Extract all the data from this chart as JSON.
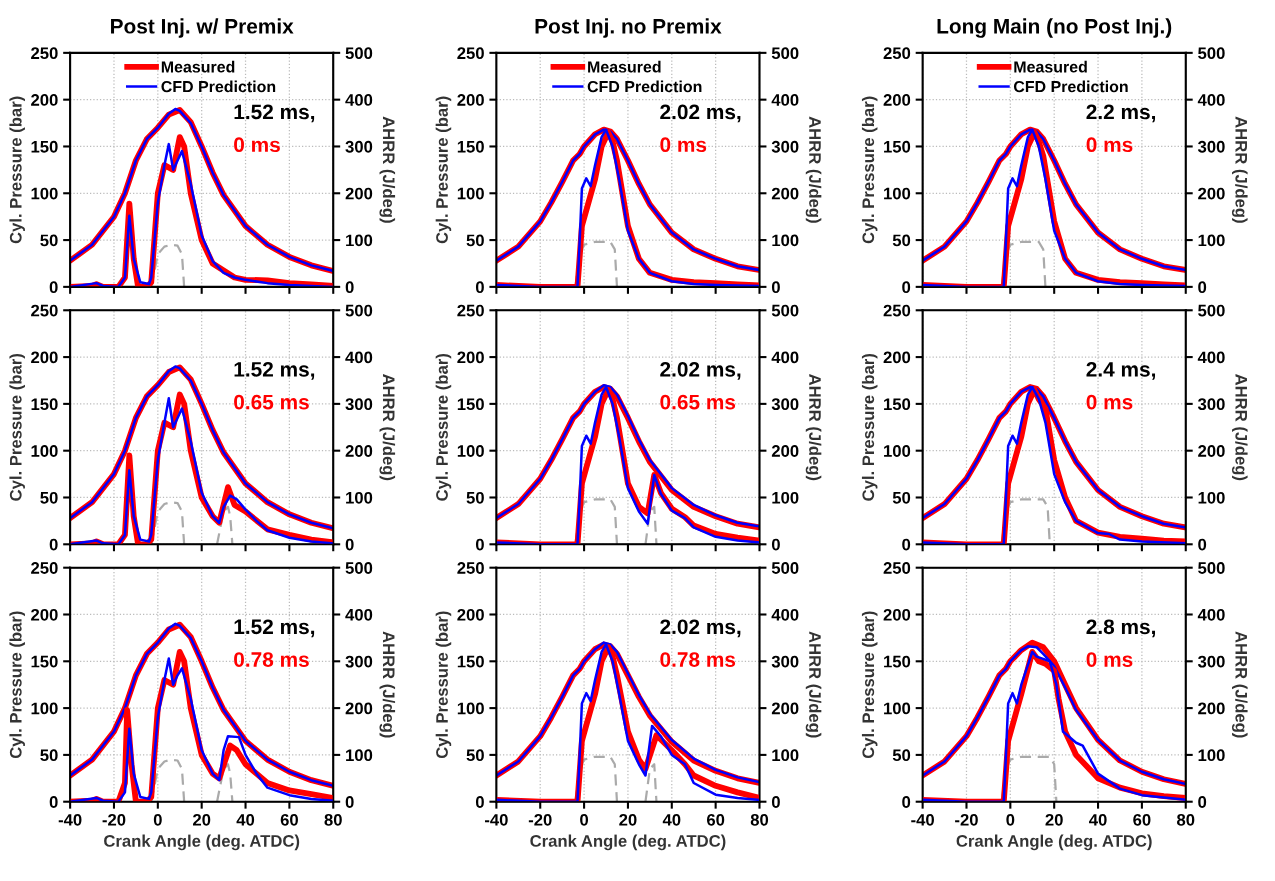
{
  "chart_data": [
    {
      "type": "line",
      "title": "Post Inj. w/ Premix",
      "ylabel": "Cyl. Pressure (bar)",
      "y2label": "AHRR (J/deg)",
      "xlim": [
        -40,
        80
      ],
      "xticks": [
        -40,
        -20,
        0,
        20,
        40,
        60,
        80
      ],
      "ylim": [
        0,
        250
      ],
      "yticks": [
        0,
        50,
        100,
        150,
        200,
        250
      ],
      "y2lim": [
        0,
        500
      ],
      "y2ticks": [
        0,
        100,
        200,
        300,
        400,
        500
      ],
      "grid": true,
      "legend": "top",
      "tick_labels": "y",
      "annotations": [
        "1.52 ms,",
        "0 ms"
      ],
      "series": [
        {
          "name": "Measured",
          "color": "#ff0000",
          "x": [
            -40,
            -30,
            -20,
            -15,
            -10,
            -5,
            0,
            5,
            10,
            15,
            20,
            25,
            30,
            40,
            50,
            60,
            70,
            80
          ],
          "values": [
            28,
            45,
            75,
            100,
            135,
            158,
            170,
            184,
            189,
            176,
            150,
            122,
            98,
            65,
            45,
            32,
            23,
            17
          ]
        },
        {
          "name": "CFD Prediction",
          "color": "#0000ff",
          "x": [
            -40,
            -30,
            -20,
            -15,
            -10,
            -5,
            0,
            5,
            8,
            10,
            15,
            20,
            25,
            30,
            40,
            50,
            60,
            70,
            80
          ],
          "values": [
            28,
            45,
            75,
            100,
            135,
            158,
            170,
            185,
            190,
            188,
            175,
            150,
            122,
            98,
            65,
            45,
            32,
            23,
            17
          ]
        },
        {
          "color": "#ff0000",
          "axis": "y2",
          "x": [
            -40,
            -30,
            -28,
            -25,
            -18,
            -15,
            -13,
            -11,
            -9,
            -5,
            -3,
            0,
            3,
            7,
            10,
            12,
            15,
            20,
            25,
            30,
            35,
            40,
            50,
            60,
            70,
            80
          ],
          "values": [
            0,
            2,
            6,
            0,
            0,
            20,
            178,
            60,
            0,
            0,
            10,
            200,
            260,
            250,
            320,
            300,
            200,
            100,
            50,
            35,
            20,
            15,
            14,
            8,
            5,
            2
          ]
        },
        {
          "color": "#0000ff",
          "axis": "y2",
          "x": [
            -40,
            -28,
            -25,
            -18,
            -15,
            -13,
            -11,
            -8,
            -4,
            -3,
            0,
            3,
            5,
            7,
            9,
            11,
            15,
            20,
            25,
            30,
            35,
            40,
            50,
            60,
            70,
            80
          ],
          "values": [
            0,
            8,
            2,
            0,
            20,
            152,
            60,
            10,
            6,
            20,
            180,
            260,
            305,
            250,
            270,
            290,
            220,
            110,
            55,
            30,
            20,
            15,
            8,
            4,
            2,
            0
          ]
        },
        {
          "color": "#aaaaaa",
          "line_style": "dashed",
          "x": [
            -3,
            0,
            3,
            6,
            9,
            11,
            12
          ],
          "values": [
            0,
            35,
            43,
            45,
            44,
            35,
            0
          ]
        }
      ]
    },
    {
      "type": "line",
      "title": "Post Inj. no Premix",
      "ylabel": "Cyl. Pressure (bar)",
      "y2label": "AHRR (J/deg)",
      "xlim": [
        -40,
        80
      ],
      "xticks": [
        -40,
        -20,
        0,
        20,
        40,
        60,
        80
      ],
      "ylim": [
        0,
        250
      ],
      "yticks": [
        0,
        50,
        100,
        150,
        200,
        250
      ],
      "y2lim": [
        0,
        500
      ],
      "y2ticks": [
        0,
        100,
        200,
        300,
        400,
        500
      ],
      "grid": true,
      "legend": "top",
      "tick_labels": "y",
      "annotations": [
        "2.02 ms,",
        "0 ms"
      ],
      "series": [
        {
          "name": "Measured",
          "color": "#ff0000",
          "x": [
            -40,
            -30,
            -20,
            -15,
            -10,
            -5,
            -2,
            0,
            5,
            9,
            12,
            15,
            20,
            25,
            30,
            40,
            50,
            60,
            70,
            80
          ],
          "values": [
            28,
            43,
            70,
            90,
            112,
            135,
            142,
            150,
            163,
            168,
            166,
            158,
            135,
            110,
            88,
            58,
            40,
            30,
            22,
            18
          ]
        },
        {
          "name": "CFD Prediction",
          "color": "#0000ff",
          "x": [
            -40,
            -30,
            -20,
            -15,
            -10,
            -5,
            -2,
            0,
            5,
            9,
            12,
            15,
            20,
            25,
            30,
            40,
            50,
            60,
            70,
            80
          ],
          "values": [
            28,
            43,
            70,
            90,
            112,
            135,
            142,
            150,
            163,
            168,
            166,
            158,
            135,
            110,
            88,
            58,
            40,
            30,
            22,
            18
          ]
        },
        {
          "color": "#ff0000",
          "axis": "y2",
          "x": [
            -40,
            -20,
            -3,
            -1,
            2,
            5,
            8,
            11,
            13,
            15,
            20,
            25,
            30,
            40,
            50,
            60,
            70,
            80
          ],
          "values": [
            4,
            0,
            0,
            130,
            180,
            230,
            300,
            330,
            310,
            270,
            130,
            60,
            30,
            15,
            10,
            8,
            5,
            3
          ]
        },
        {
          "color": "#0000ff",
          "axis": "y2",
          "x": [
            -40,
            -20,
            -3,
            -2,
            -1,
            1,
            3,
            5,
            8,
            10,
            13,
            16,
            20,
            25,
            30,
            40,
            50,
            60,
            80
          ],
          "values": [
            4,
            0,
            0,
            100,
            210,
            232,
            215,
            260,
            320,
            336,
            300,
            230,
            120,
            60,
            30,
            12,
            6,
            4,
            2
          ]
        },
        {
          "color": "#aaaaaa",
          "line_style": "dashed",
          "x": [
            -4,
            -2,
            0,
            5,
            12,
            14,
            15
          ],
          "values": [
            0,
            35,
            45,
            48,
            48,
            40,
            0
          ]
        }
      ]
    },
    {
      "type": "line",
      "title": "Long Main (no Post Inj.)",
      "ylabel": "Cyl. Pressure (bar)",
      "y2label": "AHRR (J/deg)",
      "xlim": [
        -40,
        80
      ],
      "xticks": [
        -40,
        -20,
        0,
        20,
        40,
        60,
        80
      ],
      "ylim": [
        0,
        250
      ],
      "yticks": [
        0,
        50,
        100,
        150,
        200,
        250
      ],
      "y2lim": [
        0,
        500
      ],
      "y2ticks": [
        0,
        100,
        200,
        300,
        400,
        500
      ],
      "grid": true,
      "legend": "top",
      "tick_labels": "y",
      "annotations": [
        "2.2 ms,",
        "0 ms"
      ],
      "series": [
        {
          "name": "Measured",
          "color": "#ff0000",
          "x": [
            -40,
            -30,
            -20,
            -15,
            -10,
            -5,
            -2,
            0,
            5,
            9,
            12,
            15,
            20,
            25,
            30,
            40,
            50,
            60,
            70,
            80
          ],
          "values": [
            28,
            43,
            70,
            90,
            112,
            135,
            142,
            150,
            163,
            168,
            166,
            158,
            135,
            110,
            88,
            58,
            40,
            30,
            22,
            18
          ]
        },
        {
          "name": "CFD Prediction",
          "color": "#0000ff",
          "x": [
            -40,
            -30,
            -20,
            -15,
            -10,
            -5,
            -2,
            0,
            5,
            9,
            12,
            15,
            20,
            25,
            30,
            40,
            50,
            60,
            70,
            80
          ],
          "values": [
            28,
            43,
            70,
            90,
            112,
            135,
            142,
            150,
            163,
            168,
            166,
            158,
            135,
            110,
            88,
            58,
            40,
            30,
            22,
            18
          ]
        },
        {
          "color": "#ff0000",
          "axis": "y2",
          "x": [
            -40,
            -20,
            -3,
            -1,
            2,
            5,
            8,
            11,
            13,
            15,
            20,
            25,
            30,
            40,
            50,
            60,
            70,
            80
          ],
          "values": [
            4,
            0,
            0,
            130,
            180,
            230,
            300,
            330,
            310,
            280,
            140,
            60,
            30,
            15,
            10,
            8,
            5,
            3
          ]
        },
        {
          "color": "#0000ff",
          "axis": "y2",
          "x": [
            -40,
            -20,
            -3,
            -2,
            -1,
            1,
            3,
            5,
            8,
            10,
            13,
            16,
            20,
            25,
            30,
            40,
            50,
            60,
            80
          ],
          "values": [
            4,
            0,
            0,
            100,
            210,
            232,
            215,
            260,
            320,
            336,
            300,
            230,
            120,
            60,
            30,
            12,
            6,
            4,
            2
          ]
        },
        {
          "color": "#aaaaaa",
          "line_style": "dashed",
          "x": [
            -4,
            -2,
            0,
            5,
            13,
            15,
            16
          ],
          "values": [
            0,
            35,
            45,
            48,
            48,
            40,
            0
          ]
        }
      ]
    },
    {
      "type": "line",
      "ylabel": "Cyl. Pressure (bar)",
      "y2label": "AHRR (J/deg)",
      "xlim": [
        -40,
        80
      ],
      "xticks": [
        -40,
        -20,
        0,
        20,
        40,
        60,
        80
      ],
      "ylim": [
        0,
        250
      ],
      "yticks": [
        0,
        50,
        100,
        150,
        200,
        250
      ],
      "y2lim": [
        0,
        500
      ],
      "y2ticks": [
        0,
        100,
        200,
        300,
        400,
        500
      ],
      "grid": true,
      "tick_labels": "y",
      "annotations": [
        "1.52 ms,",
        "0.65 ms"
      ],
      "series": [
        {
          "color": "#ff0000",
          "x": [
            -40,
            -30,
            -20,
            -15,
            -10,
            -5,
            0,
            5,
            10,
            15,
            20,
            25,
            30,
            40,
            50,
            60,
            70,
            80
          ],
          "values": [
            28,
            45,
            75,
            100,
            135,
            158,
            170,
            184,
            189,
            176,
            150,
            122,
            98,
            65,
            45,
            32,
            23,
            17
          ]
        },
        {
          "color": "#0000ff",
          "x": [
            -40,
            -30,
            -20,
            -15,
            -10,
            -5,
            0,
            5,
            8,
            10,
            15,
            20,
            25,
            30,
            40,
            50,
            60,
            70,
            80
          ],
          "values": [
            28,
            45,
            75,
            100,
            135,
            158,
            170,
            185,
            190,
            188,
            175,
            150,
            122,
            98,
            65,
            45,
            32,
            23,
            17
          ]
        },
        {
          "color": "#ff0000",
          "axis": "y2",
          "x": [
            -40,
            -30,
            -28,
            -25,
            -18,
            -15,
            -13,
            -11,
            -9,
            -5,
            -3,
            0,
            3,
            7,
            10,
            12,
            15,
            20,
            25,
            28,
            32,
            35,
            40,
            50,
            60,
            70,
            80
          ],
          "values": [
            0,
            2,
            6,
            0,
            0,
            20,
            190,
            60,
            0,
            0,
            10,
            200,
            260,
            250,
            320,
            300,
            200,
            100,
            60,
            46,
            122,
            84,
            70,
            32,
            20,
            10,
            4
          ]
        },
        {
          "color": "#0000ff",
          "axis": "y2",
          "x": [
            -40,
            -28,
            -25,
            -18,
            -15,
            -13,
            -11,
            -8,
            -4,
            -3,
            0,
            3,
            5,
            7,
            9,
            11,
            15,
            20,
            25,
            28,
            30,
            33,
            36,
            40,
            45,
            50,
            60,
            70,
            80
          ],
          "values": [
            0,
            8,
            2,
            0,
            20,
            158,
            60,
            10,
            6,
            20,
            180,
            260,
            312,
            250,
            270,
            290,
            220,
            110,
            60,
            46,
            80,
            104,
            96,
            74,
            50,
            30,
            14,
            6,
            2
          ]
        },
        {
          "color": "#aaaaaa",
          "line_style": "dashed",
          "x": [
            -3,
            0,
            3,
            6,
            9,
            11,
            12,
            13,
            27,
            30,
            32,
            33,
            34
          ],
          "values": [
            0,
            35,
            43,
            45,
            44,
            35,
            0,
            null,
            0,
            35,
            40,
            30,
            0
          ]
        }
      ]
    },
    {
      "type": "line",
      "ylabel": "Cyl. Pressure (bar)",
      "y2label": "AHRR (J/deg)",
      "xlim": [
        -40,
        80
      ],
      "xticks": [
        -40,
        -20,
        0,
        20,
        40,
        60,
        80
      ],
      "ylim": [
        0,
        250
      ],
      "yticks": [
        0,
        50,
        100,
        150,
        200,
        250
      ],
      "y2lim": [
        0,
        500
      ],
      "y2ticks": [
        0,
        100,
        200,
        300,
        400,
        500
      ],
      "grid": true,
      "tick_labels": "y",
      "annotations": [
        "2.02 ms,",
        "0.65 ms"
      ],
      "series": [
        {
          "color": "#ff0000",
          "x": [
            -40,
            -30,
            -20,
            -15,
            -10,
            -5,
            -2,
            0,
            5,
            9,
            12,
            15,
            20,
            25,
            30,
            40,
            50,
            60,
            70,
            80
          ],
          "values": [
            28,
            43,
            70,
            90,
            112,
            135,
            142,
            150,
            163,
            168,
            166,
            158,
            135,
            110,
            88,
            58,
            40,
            30,
            22,
            18
          ]
        },
        {
          "color": "#0000ff",
          "x": [
            -40,
            -30,
            -20,
            -15,
            -10,
            -5,
            -2,
            0,
            5,
            9,
            12,
            15,
            20,
            25,
            30,
            40,
            50,
            60,
            70,
            80
          ],
          "values": [
            28,
            43,
            70,
            90,
            112,
            135,
            142,
            150,
            163,
            170,
            168,
            160,
            137,
            112,
            90,
            60,
            42,
            31,
            23,
            19
          ]
        },
        {
          "color": "#ff0000",
          "axis": "y2",
          "x": [
            -40,
            -20,
            -3,
            -1,
            2,
            5,
            8,
            11,
            13,
            15,
            20,
            25,
            29,
            32,
            35,
            40,
            46,
            50,
            60,
            70,
            80
          ],
          "values": [
            4,
            0,
            0,
            130,
            180,
            230,
            300,
            330,
            310,
            270,
            130,
            80,
            66,
            148,
            110,
            76,
            58,
            40,
            22,
            14,
            8
          ]
        },
        {
          "color": "#0000ff",
          "axis": "y2",
          "x": [
            -40,
            -20,
            -3,
            -2,
            -1,
            1,
            3,
            5,
            8,
            10,
            13,
            16,
            20,
            25,
            29,
            32,
            35,
            40,
            46,
            50,
            60,
            70,
            80
          ],
          "values": [
            4,
            0,
            0,
            100,
            210,
            232,
            215,
            260,
            320,
            336,
            300,
            230,
            120,
            70,
            44,
            148,
            108,
            72,
            56,
            36,
            16,
            8,
            4
          ]
        },
        {
          "color": "#aaaaaa",
          "line_style": "dashed",
          "x": [
            -4,
            -2,
            0,
            5,
            12,
            14,
            15,
            20,
            28,
            30,
            32,
            33
          ],
          "values": [
            0,
            35,
            45,
            48,
            48,
            40,
            0,
            null,
            0,
            35,
            40,
            0
          ]
        }
      ]
    },
    {
      "type": "line",
      "ylabel": "Cyl. Pressure (bar)",
      "y2label": "AHRR (J/deg)",
      "xlim": [
        -40,
        80
      ],
      "xticks": [
        -40,
        -20,
        0,
        20,
        40,
        60,
        80
      ],
      "ylim": [
        0,
        250
      ],
      "yticks": [
        0,
        50,
        100,
        150,
        200,
        250
      ],
      "y2lim": [
        0,
        500
      ],
      "y2ticks": [
        0,
        100,
        200,
        300,
        400,
        500
      ],
      "grid": true,
      "tick_labels": "y",
      "annotations": [
        "2.4 ms,",
        "0 ms"
      ],
      "series": [
        {
          "color": "#ff0000",
          "x": [
            -40,
            -30,
            -20,
            -15,
            -10,
            -5,
            -2,
            0,
            5,
            9,
            12,
            15,
            20,
            25,
            30,
            40,
            50,
            60,
            70,
            80
          ],
          "values": [
            28,
            43,
            70,
            90,
            112,
            135,
            142,
            150,
            163,
            168,
            166,
            158,
            135,
            110,
            88,
            58,
            40,
            30,
            22,
            18
          ]
        },
        {
          "color": "#0000ff",
          "x": [
            -40,
            -30,
            -20,
            -15,
            -10,
            -5,
            -2,
            0,
            5,
            9,
            12,
            15,
            20,
            25,
            30,
            40,
            50,
            60,
            70,
            80
          ],
          "values": [
            28,
            43,
            70,
            90,
            112,
            135,
            142,
            150,
            163,
            168,
            166,
            158,
            135,
            110,
            88,
            58,
            40,
            30,
            22,
            18
          ]
        },
        {
          "color": "#ff0000",
          "axis": "y2",
          "x": [
            -40,
            -20,
            -3,
            -1,
            2,
            5,
            8,
            11,
            13,
            16,
            20,
            25,
            30,
            40,
            50,
            60,
            70,
            80
          ],
          "values": [
            4,
            0,
            0,
            130,
            180,
            230,
            300,
            330,
            310,
            290,
            180,
            100,
            50,
            25,
            16,
            12,
            8,
            6
          ]
        },
        {
          "color": "#0000ff",
          "axis": "y2",
          "x": [
            -40,
            -20,
            -3,
            -2,
            -1,
            1,
            3,
            5,
            8,
            10,
            13,
            16,
            20,
            25,
            30,
            40,
            45,
            50,
            60,
            80
          ],
          "values": [
            4,
            0,
            0,
            100,
            210,
            232,
            215,
            260,
            320,
            336,
            310,
            260,
            150,
            90,
            50,
            24,
            22,
            10,
            6,
            2
          ]
        },
        {
          "color": "#aaaaaa",
          "line_style": "dashed",
          "x": [
            -4,
            -2,
            0,
            5,
            15,
            17,
            18
          ],
          "values": [
            0,
            35,
            45,
            48,
            48,
            40,
            0
          ]
        }
      ]
    },
    {
      "type": "line",
      "ylabel": "Cyl. Pressure (bar)",
      "y2label": "AHRR (J/deg)",
      "xlabel": "Crank Angle (deg. ATDC)",
      "xlim": [
        -40,
        80
      ],
      "xticks": [
        -40,
        -20,
        0,
        20,
        40,
        60,
        80
      ],
      "ylim": [
        0,
        250
      ],
      "yticks": [
        0,
        50,
        100,
        150,
        200,
        250
      ],
      "y2lim": [
        0,
        500
      ],
      "y2ticks": [
        0,
        100,
        200,
        300,
        400,
        500
      ],
      "grid": true,
      "annotations": [
        "1.52 ms,",
        "0.78 ms"
      ],
      "series": [
        {
          "color": "#ff0000",
          "x": [
            -40,
            -30,
            -20,
            -15,
            -10,
            -5,
            0,
            5,
            10,
            15,
            20,
            25,
            30,
            40,
            50,
            60,
            70,
            80
          ],
          "values": [
            28,
            45,
            75,
            100,
            135,
            158,
            170,
            184,
            189,
            176,
            150,
            122,
            98,
            65,
            45,
            32,
            23,
            17
          ]
        },
        {
          "color": "#0000ff",
          "x": [
            -40,
            -30,
            -20,
            -15,
            -10,
            -5,
            0,
            5,
            8,
            10,
            15,
            20,
            25,
            30,
            40,
            50,
            60,
            70,
            80
          ],
          "values": [
            28,
            45,
            75,
            100,
            135,
            158,
            170,
            185,
            190,
            188,
            175,
            150,
            122,
            98,
            65,
            45,
            32,
            23,
            17
          ]
        },
        {
          "color": "#ff0000",
          "axis": "y2",
          "x": [
            -40,
            -30,
            -28,
            -25,
            -18,
            -15,
            -14,
            -12,
            -10,
            -5,
            -3,
            0,
            3,
            7,
            10,
            12,
            15,
            20,
            25,
            28,
            33,
            36,
            40,
            50,
            60,
            70,
            80
          ],
          "values": [
            0,
            2,
            6,
            0,
            0,
            40,
            196,
            80,
            0,
            0,
            10,
            200,
            260,
            250,
            320,
            300,
            200,
            100,
            60,
            50,
            120,
            110,
            80,
            40,
            24,
            16,
            8
          ]
        },
        {
          "color": "#0000ff",
          "axis": "y2",
          "x": [
            -40,
            -28,
            -25,
            -18,
            -15,
            -13,
            -11,
            -8,
            -4,
            -3,
            0,
            3,
            5,
            7,
            9,
            11,
            15,
            20,
            25,
            28,
            30,
            32,
            37,
            40,
            45,
            50,
            60,
            70,
            80
          ],
          "values": [
            0,
            8,
            2,
            0,
            20,
            156,
            60,
            10,
            6,
            20,
            180,
            260,
            306,
            250,
            270,
            285,
            220,
            110,
            60,
            46,
            110,
            140,
            138,
            100,
            60,
            30,
            14,
            6,
            2
          ]
        },
        {
          "color": "#aaaaaa",
          "line_style": "dashed",
          "x": [
            -3,
            0,
            3,
            6,
            9,
            11,
            12,
            13,
            27,
            30,
            32,
            33,
            34
          ],
          "values": [
            0,
            35,
            43,
            45,
            44,
            35,
            0,
            null,
            0,
            35,
            40,
            30,
            0
          ]
        }
      ]
    },
    {
      "type": "line",
      "ylabel": "Cyl. Pressure (bar)",
      "y2label": "AHRR (J/deg)",
      "xlabel": "Crank Angle (deg. ATDC)",
      "xlim": [
        -40,
        80
      ],
      "xticks": [
        -40,
        -20,
        0,
        20,
        40,
        60,
        80
      ],
      "ylim": [
        0,
        250
      ],
      "yticks": [
        0,
        50,
        100,
        150,
        200,
        250
      ],
      "y2lim": [
        0,
        500
      ],
      "y2ticks": [
        0,
        100,
        200,
        300,
        400,
        500
      ],
      "grid": true,
      "annotations": [
        "2.02 ms,",
        "0.78 ms"
      ],
      "series": [
        {
          "color": "#ff0000",
          "x": [
            -40,
            -30,
            -20,
            -15,
            -10,
            -5,
            -2,
            0,
            5,
            9,
            12,
            15,
            20,
            25,
            30,
            40,
            50,
            60,
            70,
            80
          ],
          "values": [
            28,
            43,
            70,
            90,
            112,
            135,
            142,
            150,
            163,
            168,
            166,
            158,
            135,
            112,
            92,
            64,
            44,
            33,
            25,
            20
          ]
        },
        {
          "color": "#0000ff",
          "x": [
            -40,
            -30,
            -20,
            -15,
            -10,
            -5,
            -2,
            0,
            5,
            9,
            12,
            15,
            20,
            25,
            30,
            40,
            50,
            60,
            70,
            80
          ],
          "values": [
            28,
            43,
            70,
            90,
            112,
            135,
            142,
            150,
            163,
            170,
            168,
            160,
            137,
            114,
            94,
            66,
            46,
            34,
            26,
            21
          ]
        },
        {
          "color": "#ff0000",
          "axis": "y2",
          "x": [
            -40,
            -20,
            -3,
            -1,
            2,
            5,
            8,
            11,
            13,
            15,
            20,
            25,
            28,
            33,
            40,
            46,
            50,
            60,
            70,
            80
          ],
          "values": [
            4,
            0,
            0,
            130,
            180,
            230,
            300,
            330,
            310,
            270,
            150,
            90,
            70,
            142,
            110,
            80,
            56,
            34,
            20,
            8
          ]
        },
        {
          "color": "#0000ff",
          "axis": "y2",
          "x": [
            -40,
            -20,
            -3,
            -2,
            -1,
            1,
            3,
            5,
            8,
            10,
            13,
            16,
            20,
            25,
            28,
            31,
            35,
            40,
            46,
            50,
            60,
            70,
            80
          ],
          "values": [
            4,
            0,
            0,
            100,
            210,
            232,
            215,
            260,
            320,
            336,
            300,
            230,
            130,
            80,
            56,
            162,
            140,
            100,
            80,
            40,
            15,
            8,
            4
          ]
        },
        {
          "color": "#aaaaaa",
          "line_style": "dashed",
          "x": [
            -4,
            -2,
            0,
            5,
            12,
            14,
            15,
            20,
            28,
            30,
            32,
            33
          ],
          "values": [
            0,
            35,
            45,
            48,
            48,
            40,
            0,
            null,
            0,
            35,
            40,
            0
          ]
        }
      ]
    },
    {
      "type": "line",
      "ylabel": "Cyl. Pressure (bar)",
      "y2label": "AHRR (J/deg)",
      "xlabel": "Crank Angle (deg. ATDC)",
      "xlim": [
        -40,
        80
      ],
      "xticks": [
        -40,
        -20,
        0,
        20,
        40,
        60,
        80
      ],
      "ylim": [
        0,
        250
      ],
      "yticks": [
        0,
        50,
        100,
        150,
        200,
        250
      ],
      "y2lim": [
        0,
        500
      ],
      "y2ticks": [
        0,
        100,
        200,
        300,
        400,
        500
      ],
      "grid": true,
      "annotations": [
        "2.8 ms,",
        "0 ms"
      ],
      "series": [
        {
          "color": "#ff0000",
          "x": [
            -40,
            -30,
            -20,
            -15,
            -10,
            -5,
            -2,
            0,
            5,
            10,
            15,
            20,
            25,
            30,
            40,
            50,
            60,
            70,
            80
          ],
          "values": [
            28,
            43,
            70,
            90,
            112,
            135,
            142,
            150,
            162,
            170,
            165,
            150,
            125,
            100,
            66,
            44,
            32,
            24,
            19
          ]
        },
        {
          "color": "#0000ff",
          "x": [
            -40,
            -30,
            -20,
            -15,
            -10,
            -5,
            -2,
            0,
            5,
            8,
            12,
            15,
            20,
            25,
            30,
            40,
            50,
            60,
            70,
            80
          ],
          "values": [
            28,
            43,
            70,
            90,
            112,
            135,
            142,
            150,
            162,
            166,
            165,
            158,
            145,
            122,
            98,
            66,
            44,
            32,
            24,
            19
          ]
        },
        {
          "color": "#ff0000",
          "axis": "y2",
          "x": [
            -40,
            -20,
            -3,
            -1,
            2,
            5,
            10,
            13,
            16,
            20,
            22,
            25,
            30,
            40,
            50,
            60,
            70,
            80
          ],
          "values": [
            4,
            0,
            0,
            130,
            180,
            230,
            320,
            300,
            295,
            280,
            220,
            150,
            100,
            50,
            30,
            18,
            12,
            8
          ]
        },
        {
          "color": "#0000ff",
          "axis": "y2",
          "x": [
            -40,
            -20,
            -3,
            -2,
            -1,
            1,
            3,
            5,
            10,
            12,
            18,
            21,
            24,
            30,
            33,
            40,
            50,
            60,
            80
          ],
          "values": [
            4,
            0,
            0,
            100,
            210,
            232,
            210,
            250,
            320,
            310,
            300,
            250,
            150,
            126,
            120,
            60,
            28,
            14,
            4
          ]
        },
        {
          "color": "#aaaaaa",
          "line_style": "dashed",
          "x": [
            -4,
            -2,
            0,
            5,
            18,
            20,
            21
          ],
          "values": [
            0,
            35,
            45,
            48,
            48,
            40,
            0
          ]
        }
      ]
    }
  ]
}
